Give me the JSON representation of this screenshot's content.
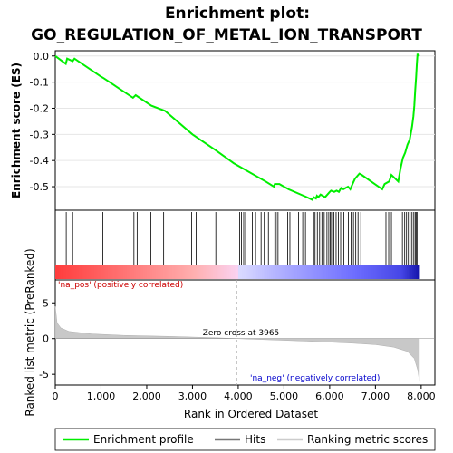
{
  "chart_data": {
    "type": "line",
    "title_line1": "Enrichment plot:",
    "title_line2": "GO_REGULATION_OF_METAL_ION_TRANSPORT",
    "panel1": {
      "ylabel": "Enrichment score (ES)",
      "ylim": [
        -0.59,
        0.02
      ],
      "yticks": [
        "0.0",
        "-0.1",
        "-0.2",
        "-0.3",
        "-0.4",
        "-0.5"
      ],
      "ytick_values": [
        0.0,
        -0.1,
        -0.2,
        -0.3,
        -0.4,
        -0.5
      ],
      "series": [
        {
          "name": "Enrichment profile",
          "color": "#00ff00",
          "x": [
            0,
            230,
            260,
            380,
            420,
            1010,
            1060,
            1700,
            1760,
            1800,
            2100,
            2400,
            3000,
            3500,
            3900,
            4000,
            4600,
            4780,
            4800,
            4900,
            5000,
            5100,
            5500,
            5620,
            5650,
            5700,
            5720,
            5750,
            5800,
            5900,
            5950,
            6000,
            6030,
            6100,
            6150,
            6200,
            6250,
            6300,
            6400,
            6450,
            6500,
            6550,
            6600,
            6650,
            6700,
            7150,
            7200,
            7300,
            7350,
            7500,
            7550,
            7600,
            7650,
            7700,
            7750,
            7800,
            7830,
            7850,
            7870,
            7890,
            7905,
            7920,
            7940,
            7960
          ],
          "y": [
            0.0,
            -0.03,
            -0.01,
            -0.02,
            -0.01,
            -0.08,
            -0.085,
            -0.16,
            -0.15,
            -0.155,
            -0.19,
            -0.21,
            -0.3,
            -0.36,
            -0.41,
            -0.42,
            -0.48,
            -0.5,
            -0.49,
            -0.49,
            -0.5,
            -0.51,
            -0.54,
            -0.55,
            -0.54,
            -0.545,
            -0.535,
            -0.54,
            -0.53,
            -0.54,
            -0.53,
            -0.52,
            -0.515,
            -0.52,
            -0.515,
            -0.52,
            -0.505,
            -0.51,
            -0.5,
            -0.51,
            -0.49,
            -0.47,
            -0.46,
            -0.45,
            -0.455,
            -0.51,
            -0.49,
            -0.48,
            -0.455,
            -0.48,
            -0.43,
            -0.39,
            -0.37,
            -0.34,
            -0.32,
            -0.27,
            -0.23,
            -0.19,
            -0.13,
            -0.08,
            -0.03,
            0.005,
            0.005,
            0.0
          ]
        }
      ]
    },
    "panel2": {
      "hits": [
        240,
        380,
        1040,
        1720,
        1790,
        2090,
        2370,
        2980,
        3080,
        3510,
        4030,
        4070,
        4120,
        4160,
        4310,
        4380,
        4500,
        4570,
        4660,
        4800,
        4830,
        4870,
        5080,
        5130,
        5320,
        5410,
        5470,
        5650,
        5680,
        5730,
        5780,
        5830,
        5880,
        5940,
        5980,
        6010,
        6040,
        6090,
        6140,
        6190,
        6240,
        6310,
        6410,
        6470,
        6520,
        6570,
        6620,
        6680,
        7230,
        7290,
        7350,
        7590,
        7640,
        7680,
        7720,
        7760,
        7800,
        7840,
        7870,
        7890,
        7910
      ],
      "label_pos": "'na_pos' (positively correlated)",
      "label_neg": "'na_neg' (negatively correlated)"
    },
    "panel3": {
      "ylabel": "Ranked list metric (PreRanked)",
      "ylim": [
        -6.5,
        8.2
      ],
      "yticks": [
        "5",
        "0",
        "-5"
      ],
      "ytick_values": [
        5,
        0,
        -5
      ],
      "zero_cross_label": "Zero cross at 3965",
      "zero_cross": 3965,
      "metric_points": [
        [
          0,
          4.5
        ],
        [
          40,
          2.2
        ],
        [
          120,
          1.5
        ],
        [
          300,
          1.0
        ],
        [
          800,
          0.65
        ],
        [
          1500,
          0.45
        ],
        [
          2500,
          0.3
        ],
        [
          3500,
          0.12
        ],
        [
          3965,
          0.0
        ],
        [
          4500,
          -0.12
        ],
        [
          5500,
          -0.35
        ],
        [
          6500,
          -0.65
        ],
        [
          7000,
          -0.85
        ],
        [
          7400,
          -1.2
        ],
        [
          7700,
          -1.8
        ],
        [
          7850,
          -2.8
        ],
        [
          7930,
          -4.5
        ],
        [
          7962,
          -6.0
        ]
      ]
    },
    "xlabel": "Rank in Ordered Dataset",
    "xlim": [
      0,
      8300
    ],
    "xticks": [
      "0",
      "1,000",
      "2,000",
      "3,000",
      "4,000",
      "5,000",
      "6,000",
      "7,000",
      "8,000"
    ],
    "xtick_values": [
      0,
      1000,
      2000,
      3000,
      4000,
      5000,
      6000,
      7000,
      8000
    ],
    "n_genes": 7962,
    "legend": [
      {
        "label": "Enrichment profile",
        "color": "#00ff00"
      },
      {
        "label": "Hits",
        "color": "#000000"
      },
      {
        "label": "Ranking metric scores",
        "color": "#c0c0c0"
      }
    ]
  }
}
